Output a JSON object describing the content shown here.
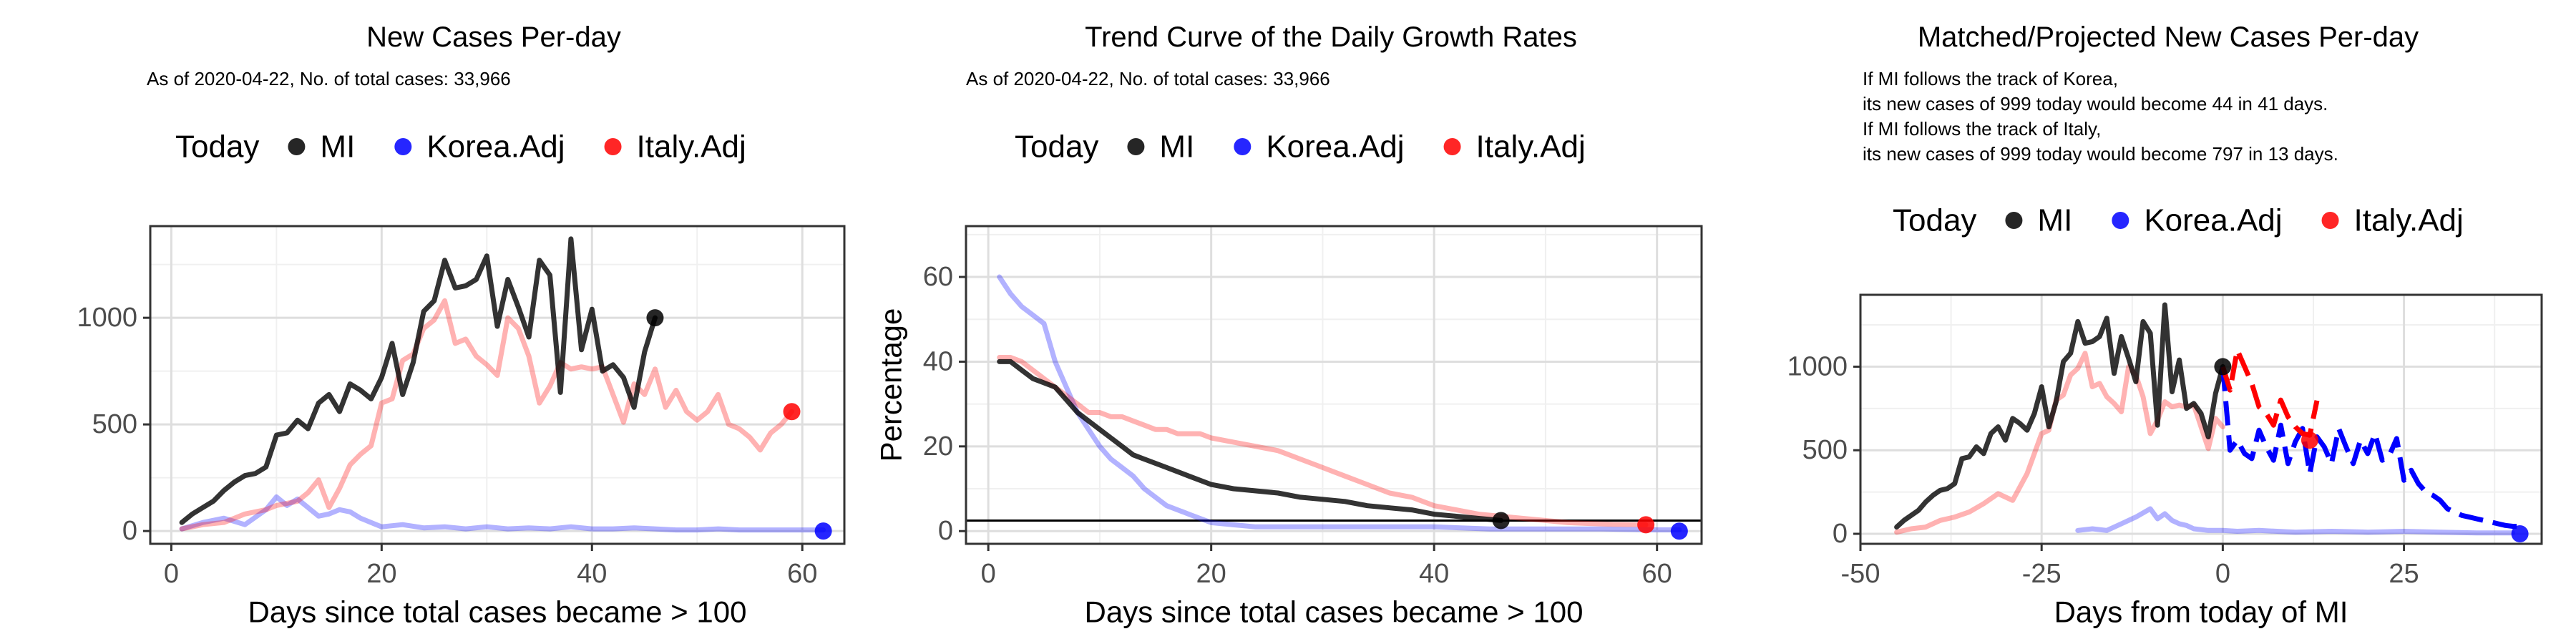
{
  "colors": {
    "mi": "#000000",
    "korea": "#0000ff",
    "italy": "#ff0000",
    "grid_major": "#dedede",
    "grid_minor": "#f0f0f0",
    "panel_border": "#333333"
  },
  "legend": {
    "title": "Today",
    "items": [
      "MI",
      "Korea.Adj",
      "Italy.Adj"
    ]
  },
  "chart_data": [
    {
      "type": "line",
      "title": "New Cases Per-day",
      "subtitle": [
        "As of 2020-04-22, No. of total cases: 33,966"
      ],
      "xlabel": "Days since total cases became > 100",
      "ylabel": "",
      "xlim": [
        -2,
        64
      ],
      "ylim": [
        -60,
        1430
      ],
      "xticks": [
        0,
        20,
        40,
        60
      ],
      "yticks": [
        0,
        500,
        1000
      ],
      "legend_position": "top",
      "grid": true,
      "series": [
        {
          "name": "MI",
          "style": "solid",
          "opacity": 0.8,
          "x": [
            1,
            2,
            3,
            4,
            5,
            6,
            7,
            8,
            9,
            10,
            11,
            12,
            13,
            14,
            15,
            16,
            17,
            18,
            19,
            20,
            21,
            22,
            23,
            24,
            25,
            26,
            27,
            28,
            29,
            30,
            31,
            32,
            33,
            34,
            35,
            36,
            37,
            38,
            39,
            40,
            41,
            42,
            43,
            44,
            45,
            46
          ],
          "y": [
            40,
            80,
            110,
            140,
            190,
            230,
            260,
            270,
            300,
            450,
            460,
            520,
            480,
            600,
            640,
            560,
            690,
            660,
            620,
            720,
            880,
            640,
            790,
            1030,
            1080,
            1270,
            1140,
            1150,
            1180,
            1290,
            960,
            1180,
            1050,
            910,
            1270,
            1200,
            650,
            1370,
            850,
            1040,
            750,
            780,
            720,
            580,
            840,
            1000
          ]
        },
        {
          "name": "Korea.Adj",
          "style": "solid",
          "opacity": 0.3,
          "x": [
            1,
            3,
            5,
            7,
            9,
            10,
            11,
            12,
            13,
            14,
            15,
            16,
            17,
            18,
            19,
            20,
            22,
            24,
            26,
            28,
            30,
            32,
            34,
            36,
            38,
            40,
            42,
            44,
            46,
            48,
            50,
            52,
            54,
            56,
            58,
            60,
            62
          ],
          "y": [
            10,
            40,
            60,
            30,
            100,
            160,
            120,
            150,
            110,
            70,
            80,
            100,
            90,
            60,
            40,
            20,
            30,
            15,
            20,
            10,
            20,
            10,
            15,
            10,
            20,
            10,
            10,
            15,
            10,
            5,
            5,
            10,
            5,
            5,
            5,
            5,
            5
          ]
        },
        {
          "name": "Italy.Adj",
          "style": "solid",
          "opacity": 0.3,
          "x": [
            1,
            2,
            3,
            4,
            5,
            6,
            7,
            8,
            9,
            10,
            11,
            12,
            13,
            14,
            15,
            16,
            17,
            18,
            19,
            20,
            21,
            22,
            23,
            24,
            25,
            26,
            27,
            28,
            29,
            30,
            31,
            32,
            33,
            34,
            35,
            36,
            37,
            38,
            39,
            40,
            41,
            42,
            43,
            44,
            45,
            46,
            47,
            48,
            49,
            50,
            51,
            52,
            53,
            54,
            55,
            56,
            57,
            58,
            59
          ],
          "y": [
            10,
            20,
            30,
            35,
            40,
            60,
            80,
            90,
            100,
            120,
            130,
            140,
            180,
            240,
            110,
            200,
            310,
            360,
            400,
            600,
            620,
            800,
            830,
            950,
            990,
            1080,
            880,
            900,
            820,
            780,
            730,
            1000,
            950,
            820,
            600,
            680,
            790,
            760,
            770,
            760,
            770,
            640,
            510,
            690,
            640,
            760,
            580,
            660,
            560,
            520,
            560,
            640,
            500,
            480,
            440,
            380,
            460,
            500,
            560
          ]
        }
      ],
      "today_points": [
        {
          "name": "MI",
          "x": 46,
          "y": 1000
        },
        {
          "name": "Korea.Adj",
          "x": 62,
          "y": 0
        },
        {
          "name": "Italy.Adj",
          "x": 59,
          "y": 560
        }
      ]
    },
    {
      "type": "line",
      "title": "Trend Curve of the Daily Growth Rates",
      "subtitle": [
        "As of 2020-04-22, No. of total cases: 33,966"
      ],
      "xlabel": "Days since total cases became > 100",
      "ylabel": "Percentage",
      "xlim": [
        -2,
        64
      ],
      "ylim": [
        -3,
        72
      ],
      "xticks": [
        0,
        20,
        40,
        60
      ],
      "yticks": [
        0,
        20,
        40,
        60
      ],
      "hline": 2.5,
      "legend_position": "top",
      "grid": true,
      "series": [
        {
          "name": "MI",
          "style": "solid",
          "opacity": 0.8,
          "x": [
            1,
            2,
            3,
            4,
            5,
            6,
            7,
            8,
            9,
            10,
            11,
            12,
            13,
            14,
            15,
            16,
            18,
            20,
            22,
            24,
            26,
            28,
            30,
            32,
            34,
            36,
            38,
            40,
            42,
            44,
            46
          ],
          "y": [
            40,
            40,
            38,
            36,
            35,
            34,
            31,
            28,
            26,
            24,
            22,
            20,
            18,
            17,
            16,
            15,
            13,
            11,
            10,
            9.5,
            9,
            8,
            7.5,
            7,
            6,
            5.5,
            5,
            4,
            3.5,
            3,
            2.5
          ]
        },
        {
          "name": "Korea.Adj",
          "style": "solid",
          "opacity": 0.3,
          "x": [
            1,
            2,
            3,
            4,
            5,
            6,
            7,
            8,
            9,
            10,
            11,
            12,
            13,
            14,
            15,
            16,
            17,
            18,
            19,
            20,
            22,
            24,
            26,
            30,
            35,
            40,
            45,
            50,
            55,
            60,
            62
          ],
          "y": [
            60,
            56,
            53,
            51,
            49,
            40,
            34,
            28,
            24,
            20,
            17,
            15,
            13,
            10,
            8,
            6,
            5,
            4,
            3,
            2,
            1.5,
            1,
            1,
            1,
            1,
            1,
            0.5,
            0.5,
            0.5,
            0.3,
            0.3
          ]
        },
        {
          "name": "Italy.Adj",
          "style": "solid",
          "opacity": 0.3,
          "x": [
            1,
            2,
            3,
            4,
            5,
            6,
            7,
            8,
            9,
            10,
            11,
            12,
            13,
            14,
            15,
            16,
            17,
            18,
            19,
            20,
            22,
            24,
            26,
            28,
            30,
            32,
            34,
            36,
            38,
            40,
            42,
            44,
            46,
            48,
            50,
            52,
            54,
            56,
            59
          ],
          "y": [
            41,
            41,
            40,
            38,
            36,
            34,
            32,
            30,
            28,
            28,
            27,
            27,
            26,
            25,
            24,
            24,
            23,
            23,
            23,
            22,
            21,
            20,
            19,
            17,
            15,
            13,
            11,
            9,
            8,
            6,
            5,
            4,
            3.5,
            3,
            2.5,
            2,
            1.8,
            1.6,
            1.5
          ]
        }
      ],
      "today_points": [
        {
          "name": "MI",
          "x": 46,
          "y": 2.5
        },
        {
          "name": "Korea.Adj",
          "x": 62,
          "y": 0
        },
        {
          "name": "Italy.Adj",
          "x": 59,
          "y": 1.5
        }
      ]
    },
    {
      "type": "line",
      "title": "Matched/Projected New Cases Per-day",
      "subtitle": [
        "If MI follows the track of Korea,",
        "its new cases of 999 today would become 44 in 41 days.",
        "If MI follows the track of Italy,",
        "its new cases of 999 today would become 797 in 13 days."
      ],
      "xlabel": "Days from today of MI",
      "ylabel": "",
      "xlim": [
        -50,
        44
      ],
      "ylim": [
        -60,
        1430
      ],
      "xticks": [
        -50,
        -25,
        0,
        25
      ],
      "yticks": [
        0,
        500,
        1000
      ],
      "legend_position": "top",
      "grid": true,
      "series": [
        {
          "name": "MI",
          "style": "solid",
          "opacity": 0.8,
          "x": [
            -45,
            -44,
            -43,
            -42,
            -41,
            -40,
            -39,
            -38,
            -37,
            -36,
            -35,
            -34,
            -33,
            -32,
            -31,
            -30,
            -29,
            -28,
            -27,
            -26,
            -25,
            -24,
            -23,
            -22,
            -21,
            -20,
            -19,
            -18,
            -17,
            -16,
            -15,
            -14,
            -13,
            -12,
            -11,
            -10,
            -9,
            -8,
            -7,
            -6,
            -5,
            -4,
            -3,
            -2,
            -1,
            0
          ],
          "y": [
            40,
            80,
            110,
            140,
            190,
            230,
            260,
            270,
            300,
            450,
            460,
            520,
            480,
            600,
            640,
            560,
            690,
            660,
            620,
            720,
            880,
            640,
            790,
            1030,
            1080,
            1270,
            1140,
            1150,
            1180,
            1290,
            960,
            1180,
            1050,
            910,
            1270,
            1200,
            650,
            1370,
            850,
            1040,
            750,
            780,
            720,
            580,
            840,
            1000
          ]
        },
        {
          "name": "Korea.Adj",
          "style": "solid",
          "opacity": 0.3,
          "x": [
            -20,
            -18,
            -16,
            -14,
            -12,
            -10,
            -9,
            -8,
            -7,
            -6,
            -5,
            -4,
            -2,
            0,
            2,
            5,
            10,
            15,
            20,
            25,
            30,
            35,
            40
          ],
          "y": [
            20,
            30,
            20,
            60,
            100,
            150,
            90,
            120,
            80,
            60,
            50,
            30,
            20,
            20,
            15,
            20,
            10,
            15,
            10,
            15,
            10,
            5,
            5
          ]
        },
        {
          "name": "Italy.Adj",
          "style": "solid",
          "opacity": 0.3,
          "x": [
            -45,
            -43,
            -41,
            -39,
            -37,
            -35,
            -33,
            -31,
            -29,
            -27,
            -25,
            -24,
            -23,
            -22,
            -21,
            -20,
            -19,
            -18,
            -17,
            -16,
            -15,
            -14,
            -13,
            -12,
            -11,
            -10,
            -9,
            -8,
            -7,
            -6,
            -5,
            -4,
            -3,
            -2,
            -1,
            0
          ],
          "y": [
            10,
            30,
            40,
            80,
            100,
            130,
            180,
            240,
            200,
            360,
            600,
            620,
            800,
            830,
            950,
            990,
            1080,
            880,
            900,
            820,
            780,
            730,
            1000,
            950,
            820,
            600,
            680,
            790,
            760,
            770,
            760,
            770,
            640,
            510,
            690,
            640
          ]
        },
        {
          "name": "Korea.Adj",
          "style": "dashed",
          "opacity": 1,
          "x": [
            0,
            1,
            2,
            3,
            4,
            5,
            6,
            7,
            8,
            9,
            10,
            11,
            12,
            13,
            14,
            15,
            16,
            17,
            18,
            19,
            20,
            21,
            22,
            23,
            24,
            25,
            26,
            27,
            28,
            29,
            30,
            31,
            32,
            33,
            34,
            35,
            36,
            37,
            38,
            39,
            40,
            41
          ],
          "y": [
            999,
            500,
            560,
            480,
            450,
            620,
            520,
            440,
            650,
            420,
            550,
            630,
            360,
            580,
            520,
            420,
            630,
            520,
            420,
            560,
            480,
            600,
            440,
            470,
            570,
            320,
            380,
            300,
            250,
            230,
            200,
            150,
            130,
            110,
            100,
            90,
            80,
            70,
            60,
            50,
            45,
            44
          ]
        },
        {
          "name": "Italy.Adj",
          "style": "dashed",
          "opacity": 1,
          "x": [
            0,
            1,
            2,
            3,
            4,
            5,
            6,
            7,
            8,
            9,
            10,
            11,
            12,
            13
          ],
          "y": [
            999,
            860,
            1100,
            1000,
            900,
            760,
            720,
            650,
            800,
            700,
            640,
            600,
            590,
            797
          ]
        }
      ],
      "today_points": [
        {
          "name": "MI",
          "x": 0,
          "y": 1000
        },
        {
          "name": "Korea.Adj",
          "x": 41,
          "y": 0
        },
        {
          "name": "Italy.Adj",
          "x": 12,
          "y": 560
        }
      ]
    }
  ]
}
